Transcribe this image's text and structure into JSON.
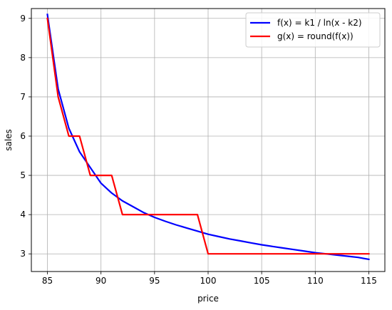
{
  "chart_data": {
    "type": "line",
    "xlabel": "price",
    "ylabel": "sales",
    "xlim": [
      83.5,
      116.5
    ],
    "ylim": [
      2.55,
      9.25
    ],
    "xticks": [
      85,
      90,
      95,
      100,
      105,
      110,
      115
    ],
    "yticks": [
      3,
      4,
      5,
      6,
      7,
      8,
      9
    ],
    "grid": true,
    "legend": {
      "placement": "top-right"
    },
    "series": [
      {
        "name": "f(x) = k1 / ln(x - k2)",
        "color": "#0000ff",
        "x": [
          85,
          86,
          87,
          88,
          89,
          90,
          91,
          92,
          93,
          94,
          95,
          96,
          97,
          98,
          99,
          100,
          101,
          102,
          103,
          104,
          105,
          106,
          107,
          108,
          109,
          110,
          111,
          112,
          113,
          114,
          115
        ],
        "y": [
          9.1,
          7.2,
          6.2,
          5.6,
          5.2,
          4.8,
          4.55,
          4.35,
          4.2,
          4.05,
          3.93,
          3.83,
          3.74,
          3.66,
          3.58,
          3.5,
          3.44,
          3.38,
          3.33,
          3.28,
          3.23,
          3.19,
          3.15,
          3.11,
          3.07,
          3.03,
          3.0,
          2.97,
          2.94,
          2.91,
          2.86
        ]
      },
      {
        "name": "g(x) = round(f(x))",
        "color": "#ff0000",
        "x": [
          85,
          86,
          87,
          88,
          89,
          90,
          91,
          92,
          93,
          94,
          95,
          96,
          97,
          98,
          99,
          100,
          101,
          102,
          103,
          104,
          105,
          106,
          107,
          108,
          109,
          110,
          111,
          112,
          113,
          114,
          115
        ],
        "y": [
          9,
          7,
          6,
          6,
          5,
          5,
          5,
          4,
          4,
          4,
          4,
          4,
          4,
          4,
          4,
          3,
          3,
          3,
          3,
          3,
          3,
          3,
          3,
          3,
          3,
          3,
          3,
          3,
          3,
          3,
          3
        ]
      }
    ]
  }
}
